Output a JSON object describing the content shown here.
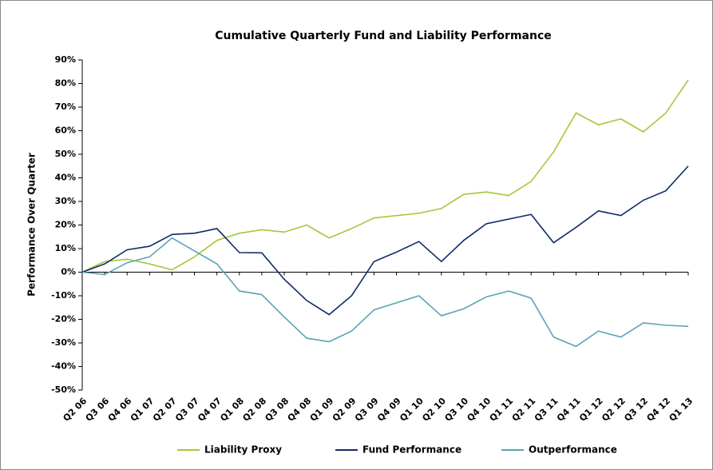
{
  "chart_data": {
    "type": "line",
    "title": "Cumulative Quarterly Fund and Liability Performance",
    "y_label": "Performance Over Quarter",
    "categories": [
      "Q2 06",
      "Q3 06",
      "Q4 06",
      "Q1 07",
      "Q2 07",
      "Q3 07",
      "Q4 07",
      "Q1 08",
      "Q2 08",
      "Q3 08",
      "Q4 08",
      "Q1 09",
      "Q2 09",
      "Q3 09",
      "Q4 09",
      "Q1 10",
      "Q2 10",
      "Q3 10",
      "Q4 10",
      "Q1 11",
      "Q2 11",
      "Q3 11",
      "Q4 11",
      "Q1 12",
      "Q2 12",
      "Q3 12",
      "Q4 12",
      "Q1 13"
    ],
    "series": [
      {
        "name": "Liability Proxy",
        "color": "#a3c83a",
        "values": [
          0,
          4.5,
          5.5,
          3.5,
          1,
          6.5,
          13.5,
          16.5,
          18,
          17,
          20,
          14.5,
          18.5,
          23,
          24,
          25,
          27,
          33,
          34,
          32.5,
          38.5,
          51,
          67.5,
          62.5,
          65,
          59.5,
          67.5,
          81.5
        ]
      },
      {
        "name": "Fund Performance",
        "color": "#0f2a6a",
        "values": [
          0,
          3.5,
          9.5,
          11,
          16,
          16.5,
          18.5,
          8.3,
          8.2,
          -3,
          -12,
          -18,
          -10,
          4.5,
          8.5,
          13,
          4.5,
          13.5,
          20.5,
          22.5,
          24.5,
          12.5,
          19,
          26,
          24,
          30.5,
          34.5,
          45
        ]
      },
      {
        "name": "Outperformance",
        "color": "#5ba3b6",
        "values": [
          0,
          -1,
          4,
          6.5,
          14.5,
          9,
          3.5,
          -8,
          -9.5,
          -19,
          -28,
          -29.5,
          -25,
          -16,
          -13,
          -10,
          -18.5,
          -15.5,
          -10.5,
          -8,
          -11,
          -27.5,
          -31.5,
          -25,
          -27.5,
          -21.5,
          -22.5,
          -23
        ]
      }
    ],
    "ylim": [
      -50,
      90
    ],
    "yticks": [
      {
        "value": -50,
        "label": "-50%"
      },
      {
        "value": -40,
        "label": "-40%"
      },
      {
        "value": -30,
        "label": "-30%"
      },
      {
        "value": -20,
        "label": "-20%"
      },
      {
        "value": -10,
        "label": "-10%"
      },
      {
        "value": 0,
        "label": "0%"
      },
      {
        "value": 10,
        "label": "10%"
      },
      {
        "value": 20,
        "label": "20%"
      },
      {
        "value": 30,
        "label": "30%"
      },
      {
        "value": 40,
        "label": "40%"
      },
      {
        "value": 50,
        "label": "50%"
      },
      {
        "value": 60,
        "label": "60%"
      },
      {
        "value": 70,
        "label": "70%"
      },
      {
        "value": 80,
        "label": "80%"
      },
      {
        "value": 90,
        "label": "90%"
      }
    ],
    "legend": "bottom"
  }
}
